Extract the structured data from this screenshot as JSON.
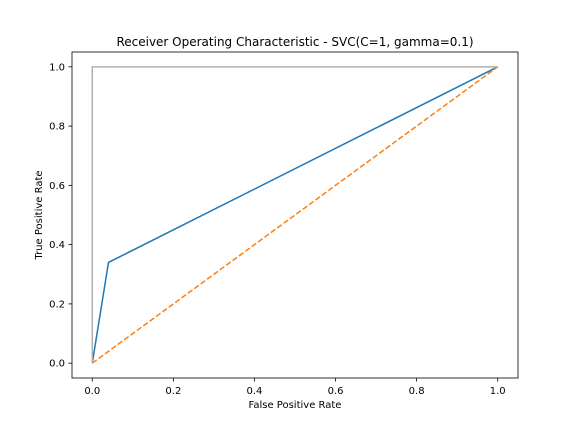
{
  "chart_data": {
    "type": "line",
    "title": "Receiver Operating Characteristic - SVC(C=1, gamma=0.1)",
    "xlabel": "False Positive Rate",
    "ylabel": "True Positive Rate",
    "xlim": [
      -0.05,
      1.05
    ],
    "ylim": [
      -0.05,
      1.05
    ],
    "xticks": [
      0.0,
      0.2,
      0.4,
      0.6,
      0.8,
      1.0
    ],
    "yticks": [
      0.0,
      0.2,
      0.4,
      0.6,
      0.8,
      1.0
    ],
    "xtick_labels": [
      "0.0",
      "0.2",
      "0.4",
      "0.6",
      "0.8",
      "1.0"
    ],
    "ytick_labels": [
      "0.0",
      "0.2",
      "0.4",
      "0.6",
      "0.8",
      "1.0"
    ],
    "grid": false,
    "legend": false,
    "series": [
      {
        "style": "solid",
        "color": "#1f77b4",
        "x": [
          0.0,
          0.04,
          1.0
        ],
        "y": [
          0.0,
          0.34,
          1.0
        ]
      },
      {
        "style": "dashed",
        "color": "#ff7f0e",
        "x": [
          0.0,
          1.0
        ],
        "y": [
          0.0,
          1.0
        ]
      },
      {
        "style": "solid",
        "color": "#b0b0b0",
        "x": [
          0.0,
          0.0,
          1.0
        ],
        "y": [
          0.0,
          1.0,
          1.0
        ]
      }
    ]
  }
}
